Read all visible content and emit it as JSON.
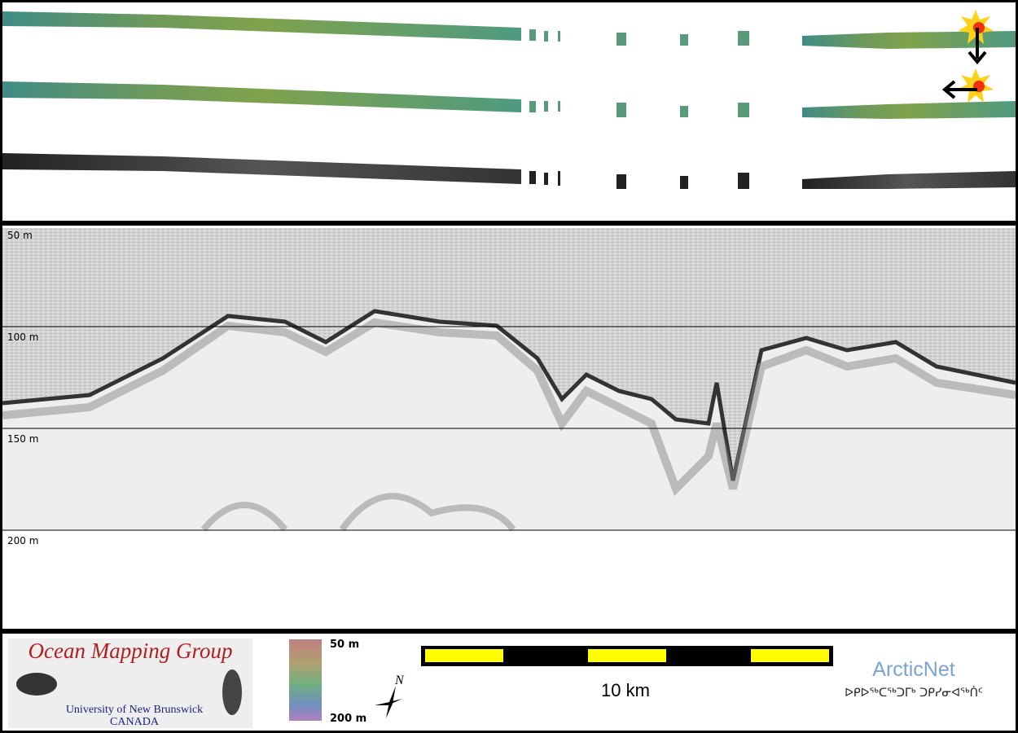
{
  "profile": {
    "depth_labels": [
      "50 m",
      "100 m",
      "150 m",
      "200 m"
    ]
  },
  "footer": {
    "logo": {
      "title": "Ocean Mapping Group",
      "institution": "University of New Brunswick",
      "country": "CANADA"
    },
    "colorbar": {
      "top_label": "50 m",
      "bottom_label": "200 m"
    },
    "compass": "N",
    "scale_bar": "10 km",
    "partner": {
      "name": "ArcticNet",
      "name_inuktitut": "ᐅᑭᐅᖅᑕᖅᑐᒥᒃ ᑐᑭᓯᓂᐊᖅᑏᑦ"
    }
  }
}
